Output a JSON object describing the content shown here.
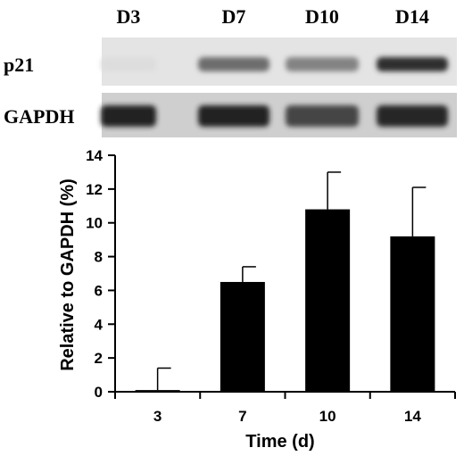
{
  "blot": {
    "lanes": [
      "D3",
      "D7",
      "D10",
      "D14"
    ],
    "rows": [
      {
        "label": "p21",
        "intensity": [
          0.02,
          0.55,
          0.45,
          0.85
        ]
      },
      {
        "label": "GAPDH",
        "intensity": [
          0.9,
          0.92,
          0.75,
          0.88
        ]
      }
    ]
  },
  "chart_data": {
    "type": "bar",
    "categories": [
      "3",
      "7",
      "10",
      "14"
    ],
    "values": [
      0.1,
      6.5,
      10.8,
      9.2
    ],
    "error": [
      1.3,
      0.9,
      2.2,
      2.9
    ],
    "xlabel": "Time (d)",
    "ylabel": "Relative to GAPDH (%)",
    "ylim": [
      0,
      14
    ],
    "yticks": [
      "0",
      "2",
      "4",
      "6",
      "8",
      "10",
      "12",
      "14"
    ],
    "bar_color": "#000000",
    "grid": false
  }
}
